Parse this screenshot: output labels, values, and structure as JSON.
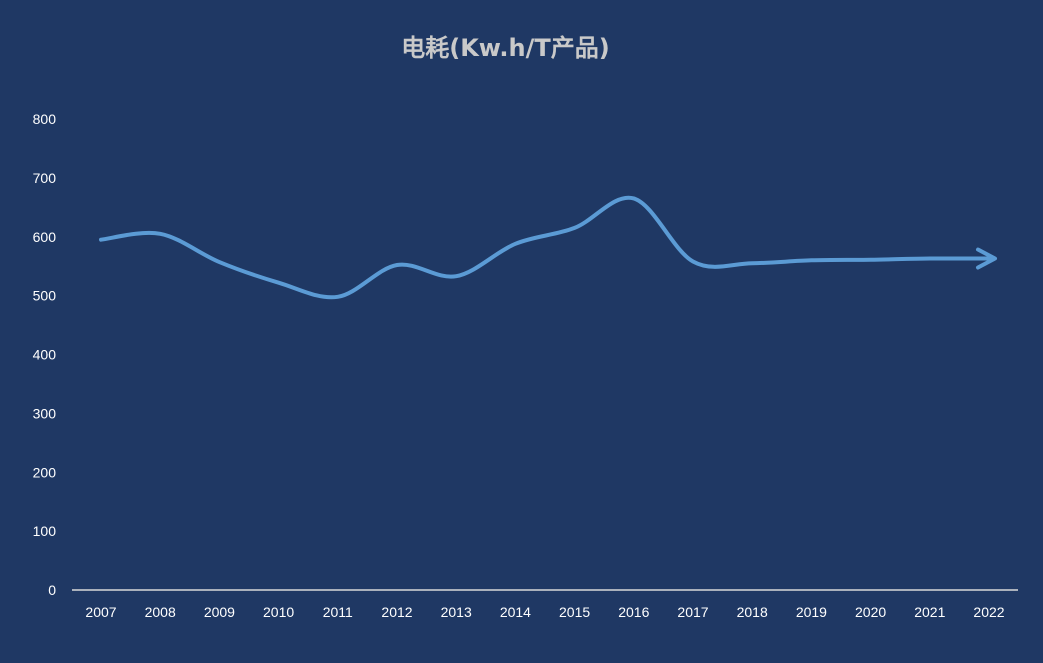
{
  "chart_data": {
    "type": "line",
    "title": "电耗(Kw.h/T产品)",
    "categories": [
      "2007",
      "2008",
      "2009",
      "2010",
      "2011",
      "2012",
      "2013",
      "2014",
      "2015",
      "2016",
      "2017",
      "2018",
      "2019",
      "2020",
      "2021",
      "2022"
    ],
    "series": [
      {
        "values": [
          595,
          605,
          557,
          522,
          498,
          552,
          533,
          588,
          615,
          665,
          558,
          555,
          560,
          561,
          563,
          563
        ],
        "color": "#5b9bd5"
      }
    ],
    "ylim": [
      0,
      800
    ],
    "yticks": [
      0,
      100,
      200,
      300,
      400,
      500,
      600,
      700,
      800
    ],
    "grid": false,
    "legend": "none",
    "colors": {
      "background": "#1f3864",
      "line": "#5b9bd5",
      "axis": "#d9d9d9",
      "text": "#ffffff",
      "title": "#c9c9c9"
    }
  }
}
